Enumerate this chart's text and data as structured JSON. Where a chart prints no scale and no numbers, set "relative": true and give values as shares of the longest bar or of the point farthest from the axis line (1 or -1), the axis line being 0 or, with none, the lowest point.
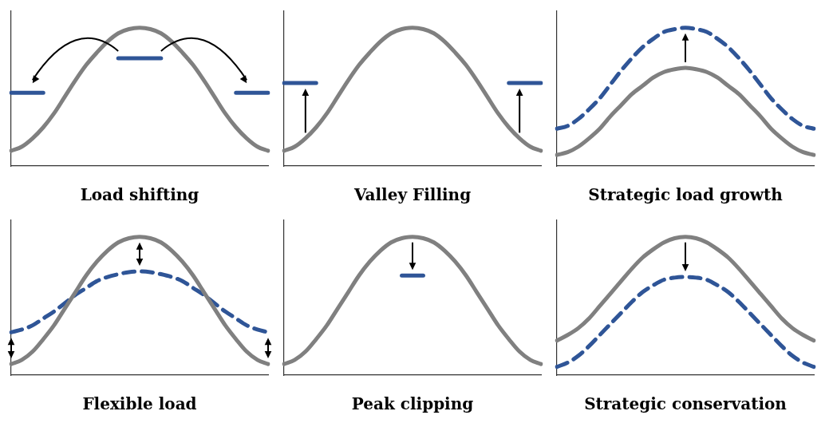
{
  "chart_data": [
    {
      "type": "line",
      "title": "Load shifting",
      "relative": true,
      "tick_labels": false,
      "grid": false,
      "legend": false,
      "marker": "none",
      "line_style": "solid",
      "categories": [
        null,
        null,
        null,
        null,
        null,
        null,
        null,
        null,
        null,
        null,
        null,
        null,
        null,
        null,
        null,
        null,
        null,
        null,
        null,
        null,
        null,
        null,
        null,
        null,
        null
      ],
      "series": [
        {
          "color": "#808080",
          "values": [
            0.11,
            0.14,
            0.2,
            0.28,
            0.38,
            0.5,
            0.62,
            0.73,
            0.82,
            0.9,
            0.96,
            0.99,
            1,
            0.99,
            0.96,
            0.9,
            0.82,
            0.73,
            0.62,
            0.5,
            0.38,
            0.28,
            0.2,
            0.14,
            0.11
          ]
        },
        {
          "color": "#2f5597",
          "values": [
            0.53,
            0.53,
            0.53,
            0.53,
            null,
            null,
            null,
            null,
            null,
            null,
            0.78,
            0.78,
            0.78,
            0.78,
            0.78,
            null,
            null,
            null,
            null,
            null,
            null,
            0.53,
            0.53,
            0.53,
            0.53
          ]
        }
      ]
    },
    {
      "type": "line",
      "title": "Valley Filling",
      "relative": true,
      "tick_labels": false,
      "grid": false,
      "legend": false,
      "marker": "none",
      "line_style": "solid",
      "categories": [
        null,
        null,
        null,
        null,
        null,
        null,
        null,
        null,
        null,
        null,
        null,
        null,
        null,
        null,
        null,
        null,
        null,
        null,
        null,
        null,
        null,
        null,
        null,
        null,
        null
      ],
      "series": [
        {
          "color": "#808080",
          "values": [
            0.11,
            0.14,
            0.2,
            0.28,
            0.38,
            0.5,
            0.62,
            0.73,
            0.82,
            0.9,
            0.96,
            0.99,
            1,
            0.99,
            0.96,
            0.9,
            0.82,
            0.73,
            0.62,
            0.5,
            0.38,
            0.28,
            0.2,
            0.14,
            0.11
          ]
        },
        {
          "color": "#2f5597",
          "values": [
            0.6,
            0.6,
            0.6,
            0.6,
            null,
            null,
            null,
            null,
            null,
            null,
            null,
            null,
            null,
            null,
            null,
            null,
            null,
            null,
            null,
            null,
            null,
            0.6,
            0.6,
            0.6,
            0.6
          ]
        }
      ]
    },
    {
      "type": "line",
      "title": "Strategic load growth",
      "relative": true,
      "tick_labels": false,
      "grid": false,
      "legend": false,
      "marker": "none",
      "line_style": "solid",
      "categories": [
        null,
        null,
        null,
        null,
        null,
        null,
        null,
        null,
        null,
        null,
        null,
        null,
        null,
        null,
        null,
        null,
        null,
        null,
        null,
        null,
        null,
        null,
        null,
        null,
        null
      ],
      "series": [
        {
          "color": "#808080",
          "values": [
            0.08,
            0.1,
            0.14,
            0.2,
            0.27,
            0.36,
            0.44,
            0.52,
            0.58,
            0.64,
            0.68,
            0.7,
            0.71,
            0.7,
            0.68,
            0.64,
            0.58,
            0.52,
            0.44,
            0.36,
            0.27,
            0.2,
            0.14,
            0.1,
            0.08
          ]
        },
        {
          "color": "#2f5597",
          "line_style": "dashed",
          "values": [
            0.27,
            0.29,
            0.34,
            0.41,
            0.49,
            0.59,
            0.69,
            0.78,
            0.86,
            0.92,
            0.97,
            0.99,
            1,
            0.99,
            0.97,
            0.92,
            0.86,
            0.78,
            0.69,
            0.59,
            0.49,
            0.41,
            0.34,
            0.29,
            0.27
          ]
        }
      ]
    },
    {
      "type": "line",
      "title": "Flexible load",
      "relative": true,
      "tick_labels": false,
      "grid": false,
      "legend": false,
      "marker": "none",
      "line_style": "solid",
      "categories": [
        null,
        null,
        null,
        null,
        null,
        null,
        null,
        null,
        null,
        null,
        null,
        null,
        null,
        null,
        null,
        null,
        null,
        null,
        null,
        null,
        null,
        null,
        null,
        null,
        null
      ],
      "series": [
        {
          "color": "#808080",
          "values": [
            0.08,
            0.11,
            0.17,
            0.26,
            0.36,
            0.48,
            0.6,
            0.72,
            0.82,
            0.9,
            0.96,
            0.99,
            1,
            0.99,
            0.96,
            0.9,
            0.82,
            0.72,
            0.6,
            0.48,
            0.36,
            0.26,
            0.17,
            0.11,
            0.08
          ]
        },
        {
          "color": "#2f5597",
          "line_style": "dashed",
          "values": [
            0.31,
            0.33,
            0.36,
            0.41,
            0.46,
            0.52,
            0.58,
            0.63,
            0.68,
            0.71,
            0.73,
            0.745,
            0.75,
            0.745,
            0.73,
            0.71,
            0.68,
            0.63,
            0.58,
            0.52,
            0.46,
            0.41,
            0.36,
            0.33,
            0.31
          ]
        }
      ]
    },
    {
      "type": "line",
      "title": "Peak clipping",
      "relative": true,
      "tick_labels": false,
      "grid": false,
      "legend": false,
      "marker": "none",
      "line_style": "solid",
      "categories": [
        null,
        null,
        null,
        null,
        null,
        null,
        null,
        null,
        null,
        null,
        null,
        null,
        null,
        null,
        null,
        null,
        null,
        null,
        null,
        null,
        null,
        null,
        null,
        null,
        null
      ],
      "series": [
        {
          "color": "#808080",
          "values": [
            0.08,
            0.11,
            0.17,
            0.26,
            0.36,
            0.48,
            0.6,
            0.72,
            0.82,
            0.9,
            0.96,
            0.99,
            1,
            0.99,
            0.96,
            0.9,
            0.82,
            0.72,
            0.6,
            0.48,
            0.36,
            0.26,
            0.17,
            0.11,
            0.08
          ]
        },
        {
          "color": "#2f5597",
          "values": [
            null,
            null,
            null,
            null,
            null,
            null,
            null,
            null,
            null,
            null,
            null,
            0.72,
            0.72,
            0.72,
            null,
            null,
            null,
            null,
            null,
            null,
            null,
            null,
            null,
            null,
            null
          ]
        }
      ]
    },
    {
      "type": "line",
      "title": "Strategic conservation",
      "relative": true,
      "tick_labels": false,
      "grid": false,
      "legend": false,
      "marker": "none",
      "line_style": "solid",
      "categories": [
        null,
        null,
        null,
        null,
        null,
        null,
        null,
        null,
        null,
        null,
        null,
        null,
        null,
        null,
        null,
        null,
        null,
        null,
        null,
        null,
        null,
        null,
        null,
        null,
        null
      ],
      "series": [
        {
          "color": "#808080",
          "values": [
            0.25,
            0.29,
            0.34,
            0.41,
            0.5,
            0.59,
            0.68,
            0.77,
            0.85,
            0.91,
            0.96,
            0.99,
            1,
            0.99,
            0.96,
            0.91,
            0.85,
            0.77,
            0.68,
            0.59,
            0.5,
            0.41,
            0.34,
            0.29,
            0.25
          ]
        },
        {
          "color": "#2f5597",
          "line_style": "dashed",
          "values": [
            0.06,
            0.09,
            0.14,
            0.21,
            0.29,
            0.37,
            0.45,
            0.53,
            0.6,
            0.65,
            0.69,
            0.705,
            0.71,
            0.705,
            0.69,
            0.65,
            0.6,
            0.53,
            0.45,
            0.37,
            0.29,
            0.21,
            0.14,
            0.09,
            0.06
          ]
        }
      ]
    }
  ]
}
